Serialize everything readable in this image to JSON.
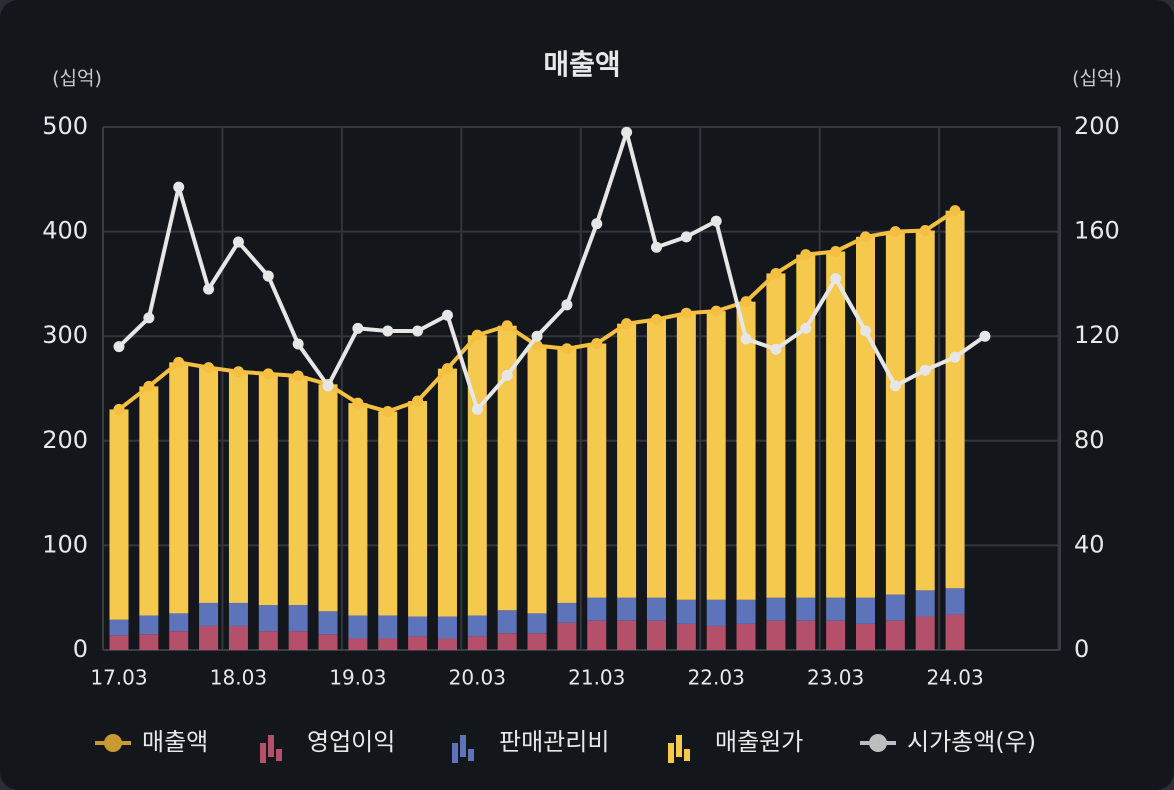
{
  "chart_data": {
    "type": "bar",
    "title": "매출액",
    "ylabel": "(십억)",
    "y2label": "(십억)",
    "categories": [
      "17.03",
      null,
      null,
      null,
      "18.03",
      null,
      null,
      null,
      "19.03",
      null,
      null,
      null,
      "20.03",
      null,
      null,
      null,
      "21.03",
      null,
      null,
      null,
      "22.03",
      null,
      null,
      null,
      "23.03",
      null,
      null,
      null,
      "24.03",
      null
    ],
    "ylim": [
      0,
      500
    ],
    "yticks": [
      0,
      100,
      200,
      300,
      400,
      500
    ],
    "y2lim": [
      0,
      200
    ],
    "y2ticks": [
      0,
      40,
      80,
      120,
      160,
      200
    ],
    "grid": true,
    "legend": "bottom",
    "series": [
      {
        "name": "매출액",
        "type": "line",
        "color": "#f5c042",
        "values": [
          230,
          252,
          275,
          270,
          266,
          264,
          262,
          254,
          236,
          228,
          238,
          269,
          301,
          310,
          291,
          288,
          293,
          312,
          316,
          322,
          324,
          333,
          360,
          378,
          381,
          395,
          400,
          401,
          420,
          null
        ]
      },
      {
        "name": "영업이익",
        "type": "bar",
        "color": "#b5506b",
        "values": [
          14,
          15,
          18,
          23,
          23,
          18,
          18,
          15,
          11,
          11,
          13,
          11,
          13,
          16,
          16,
          26,
          28,
          28,
          28,
          25,
          23,
          25,
          28,
          28,
          28,
          25,
          28,
          32,
          34,
          null
        ]
      },
      {
        "name": "판매관리비",
        "type": "bar",
        "color": "#5d74bb",
        "values": [
          15,
          18,
          17,
          22,
          22,
          25,
          25,
          22,
          22,
          22,
          19,
          21,
          20,
          22,
          19,
          19,
          22,
          22,
          22,
          23,
          25,
          23,
          22,
          22,
          22,
          25,
          25,
          25,
          25,
          null
        ]
      },
      {
        "name": "매출원가",
        "type": "bar",
        "color": "#f5c84e",
        "values": [
          201,
          219,
          240,
          225,
          221,
          221,
          219,
          217,
          203,
          195,
          206,
          237,
          268,
          272,
          256,
          243,
          243,
          262,
          266,
          274,
          276,
          285,
          310,
          328,
          331,
          345,
          347,
          344,
          361,
          null
        ]
      },
      {
        "name": "시가총액(우)",
        "type": "line",
        "axis": "y2",
        "color": "#e6e6e6",
        "values": [
          116,
          127,
          177,
          138,
          156,
          143,
          117,
          101,
          123,
          122,
          122,
          128,
          92,
          105,
          120,
          132,
          163,
          198,
          154,
          158,
          164,
          119,
          115,
          123,
          142,
          122,
          101,
          107,
          112,
          120
        ]
      }
    ]
  }
}
